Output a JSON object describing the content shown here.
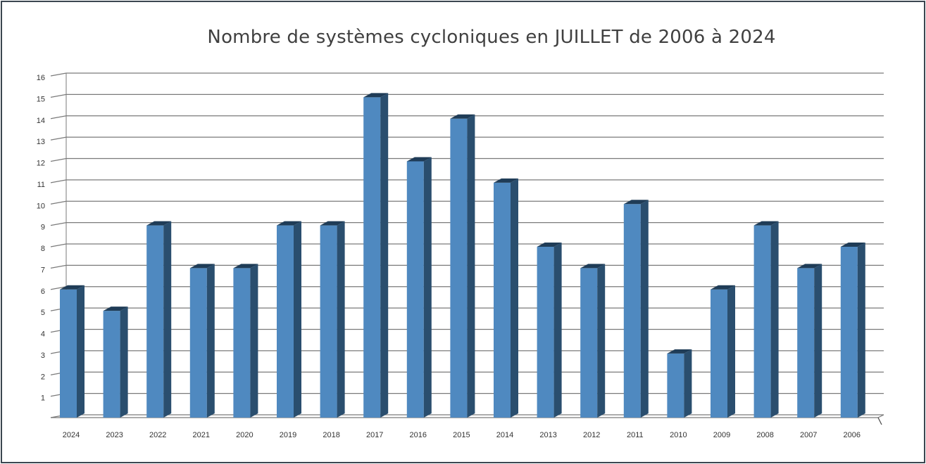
{
  "chart_data": {
    "type": "bar",
    "title": "Nombre de systèmes cycloniques en JUILLET de 2006 à 2024",
    "categories": [
      "2024",
      "2023",
      "2022",
      "2021",
      "2020",
      "2019",
      "2018",
      "2017",
      "2016",
      "2015",
      "2014",
      "2013",
      "2012",
      "2011",
      "2010",
      "2009",
      "2008",
      "2007",
      "2006"
    ],
    "values": [
      6,
      5,
      9,
      7,
      7,
      9,
      9,
      15,
      12,
      14,
      11,
      8,
      7,
      10,
      3,
      6,
      9,
      7,
      8
    ],
    "y_ticks": [
      "1",
      "2",
      "3",
      "4",
      "5",
      "6",
      "7",
      "8",
      "9",
      "10",
      "11",
      "12",
      "13",
      "14",
      "15",
      "16"
    ],
    "ylim": [
      0,
      16
    ],
    "xlabel": "",
    "ylabel": "",
    "grid": true,
    "legend": "none",
    "style": "3d-column",
    "colors": {
      "bar_front": "#4f89c0",
      "bar_side": "#2a4e6e",
      "bar_top": "#1f3c57",
      "grid": "#7a7a7a",
      "text": "#333333"
    }
  }
}
